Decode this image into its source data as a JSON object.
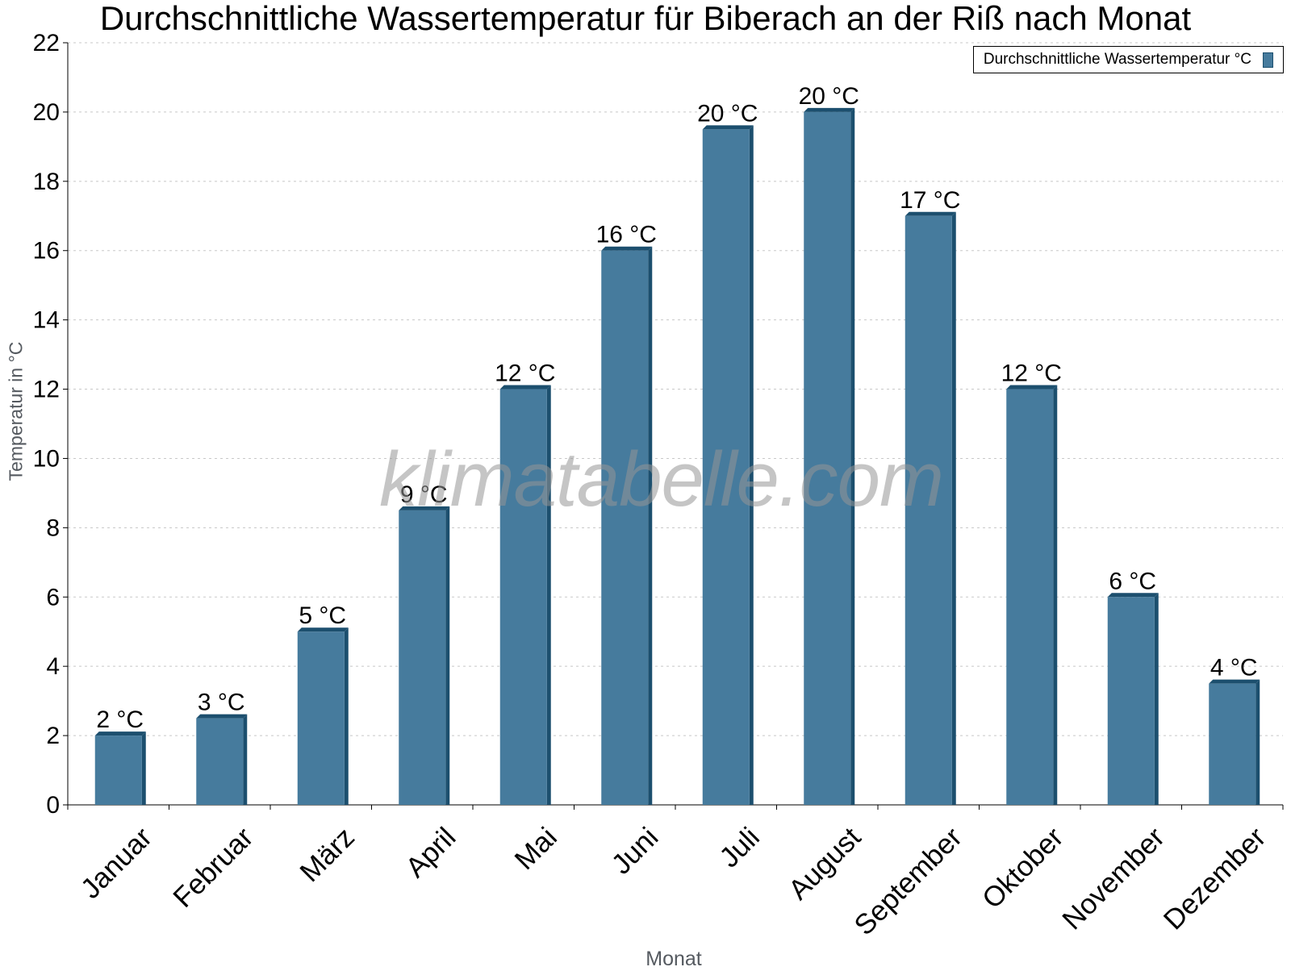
{
  "chart_data": {
    "type": "bar",
    "title": "Durchschnittliche Wassertemperatur für Biberach an der Riß nach Monat",
    "xlabel": "Monat",
    "ylabel": "Temperatur in °C",
    "categories": [
      "Januar",
      "Februar",
      "März",
      "April",
      "Mai",
      "Juni",
      "Juli",
      "August",
      "September",
      "Oktober",
      "November",
      "Dezember"
    ],
    "series": [
      {
        "name": "Durchschnittliche Wassertemperatur °C",
        "values": [
          2.0,
          2.5,
          5.0,
          8.5,
          12.0,
          16.0,
          19.5,
          20.0,
          17.0,
          12.0,
          6.0,
          3.5
        ],
        "labels": [
          "2 °C",
          "3 °C",
          "5 °C",
          "9 °C",
          "12 °C",
          "16 °C",
          "20 °C",
          "20 °C",
          "17 °C",
          "12 °C",
          "6 °C",
          "4 °C"
        ]
      }
    ],
    "ylim": [
      0,
      22
    ],
    "yticks": [
      0,
      2,
      4,
      6,
      8,
      10,
      12,
      14,
      16,
      18,
      20,
      22
    ],
    "grid": true,
    "legend": "top-right",
    "colors": {
      "bar": "#467b9d",
      "bar_edge": "#1c4f6e",
      "grid": "#c8c8c8"
    }
  },
  "watermark": "klimatabelle.com"
}
